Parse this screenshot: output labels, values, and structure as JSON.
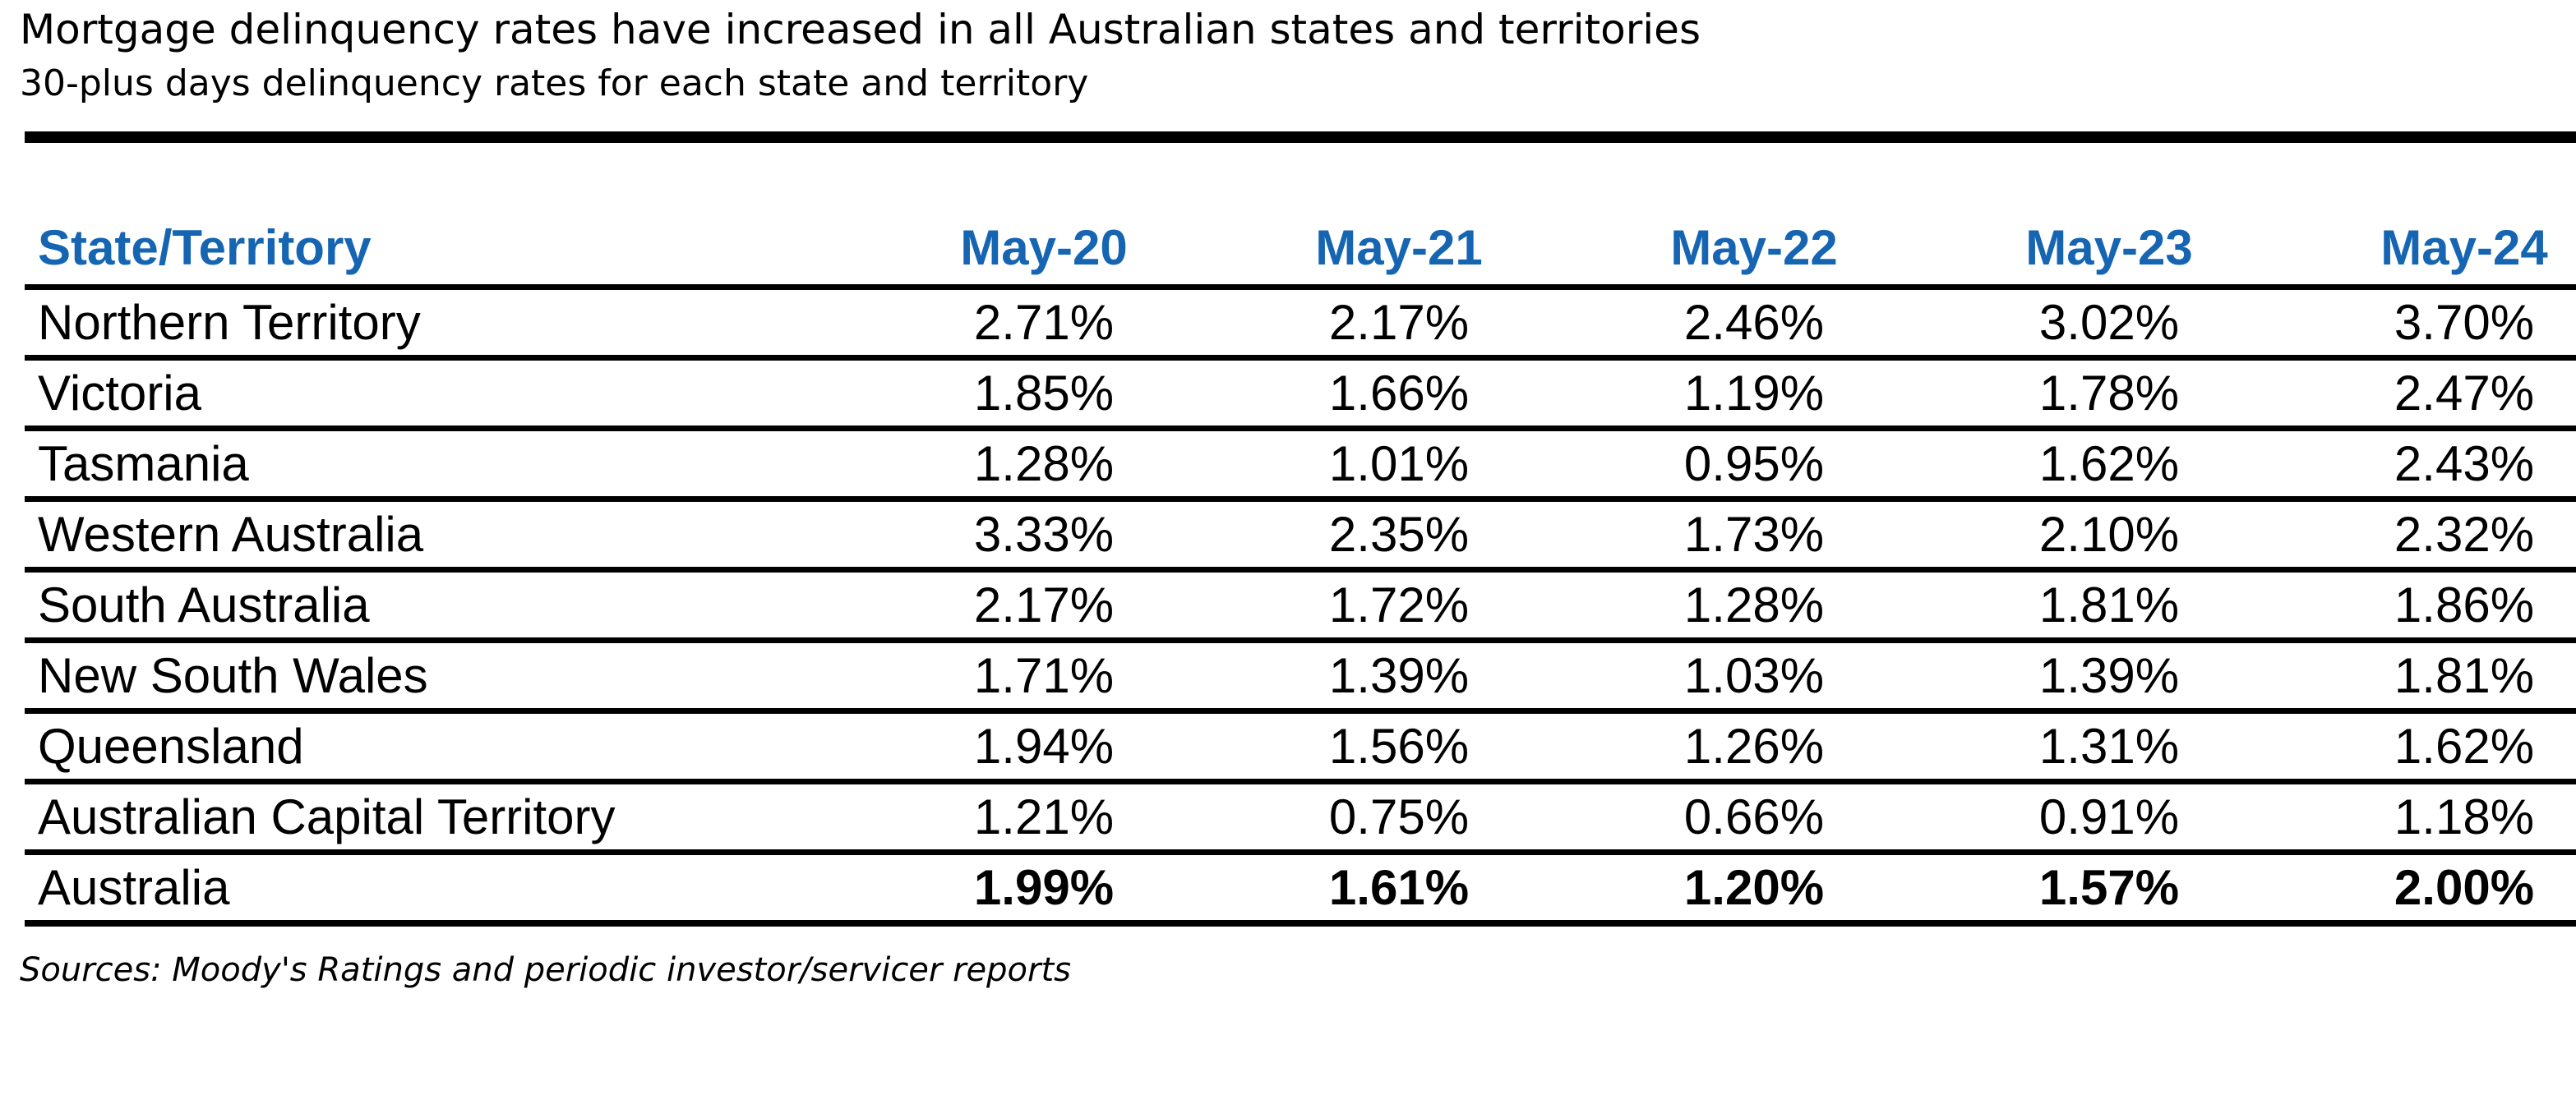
{
  "title": "Mortgage delinquency rates have increased in all Australian states and territories",
  "subtitle": "30-plus days delinquency rates for each state and territory",
  "source": "Sources: Moody's Ratings and periodic investor/servicer reports",
  "colors": {
    "header_text": "#1565B3",
    "rules": "#000000",
    "text": "#000000"
  },
  "chart_data": {
    "type": "table",
    "title": "Mortgage delinquency rates have increased in all Australian states and territories",
    "subtitle": "30-plus days delinquency rates for each state and territory",
    "columns": [
      "State/Territory",
      "May-20",
      "May-21",
      "May-22",
      "May-23",
      "May-24"
    ],
    "rows": [
      {
        "label": "Northern Territory",
        "values": [
          "2.71%",
          "2.17%",
          "2.46%",
          "3.02%",
          "3.70%"
        ]
      },
      {
        "label": "Victoria",
        "values": [
          "1.85%",
          "1.66%",
          "1.19%",
          "1.78%",
          "2.47%"
        ]
      },
      {
        "label": "Tasmania",
        "values": [
          "1.28%",
          "1.01%",
          "0.95%",
          "1.62%",
          "2.43%"
        ]
      },
      {
        "label": "Western Australia",
        "values": [
          "3.33%",
          "2.35%",
          "1.73%",
          "2.10%",
          "2.32%"
        ]
      },
      {
        "label": "South Australia",
        "values": [
          "2.17%",
          "1.72%",
          "1.28%",
          "1.81%",
          "1.86%"
        ]
      },
      {
        "label": "New South Wales",
        "values": [
          "1.71%",
          "1.39%",
          "1.03%",
          "1.39%",
          "1.81%"
        ]
      },
      {
        "label": "Queensland",
        "values": [
          "1.94%",
          "1.56%",
          "1.26%",
          "1.31%",
          "1.62%"
        ]
      },
      {
        "label": "Australian Capital Territory",
        "values": [
          "1.21%",
          "0.75%",
          "0.66%",
          "0.91%",
          "1.18%"
        ]
      },
      {
        "label": "Australia",
        "values": [
          "1.99%",
          "1.61%",
          "1.20%",
          "1.57%",
          "2.00%"
        ],
        "bold": true
      }
    ]
  }
}
